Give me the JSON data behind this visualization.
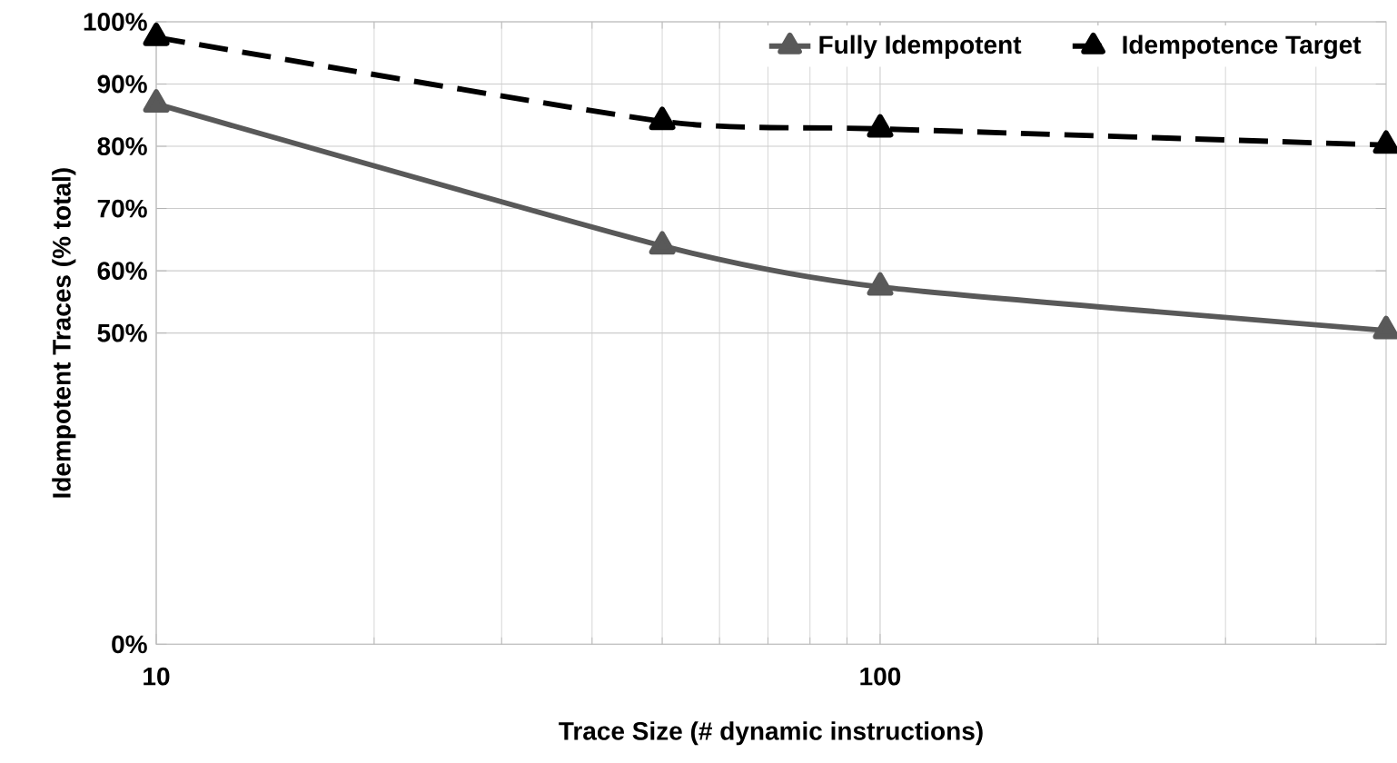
{
  "chart_data": {
    "type": "line",
    "xlabel": "Trace Size (# dynamic instructions)",
    "ylabel": "Idempotent Traces (% total)",
    "x": [
      10,
      50,
      100,
      500
    ],
    "series": [
      {
        "name": "Fully Idempotent",
        "color": "#595959",
        "line_style": "solid",
        "values": [
          86.8,
          64.0,
          57.4,
          50.4
        ]
      },
      {
        "name": "Idempotence Target",
        "color": "#000000",
        "line_style": "dashed",
        "values": [
          97.5,
          84.0,
          82.8,
          80.2
        ]
      }
    ],
    "log": "x",
    "xlim": [
      10,
      500
    ],
    "xticks": [
      10,
      100
    ],
    "ylim": [
      0,
      100
    ],
    "yticks": [
      {
        "value": 0,
        "label": "0%"
      },
      {
        "value": 50,
        "label": "50%"
      },
      {
        "value": 60,
        "label": "60%"
      },
      {
        "value": 70,
        "label": "70%"
      },
      {
        "value": 80,
        "label": "80%"
      },
      {
        "value": 90,
        "label": "90%"
      },
      {
        "value": 100,
        "label": "100%"
      }
    ],
    "grid": true,
    "legend": "top right",
    "marker": "triangle"
  }
}
